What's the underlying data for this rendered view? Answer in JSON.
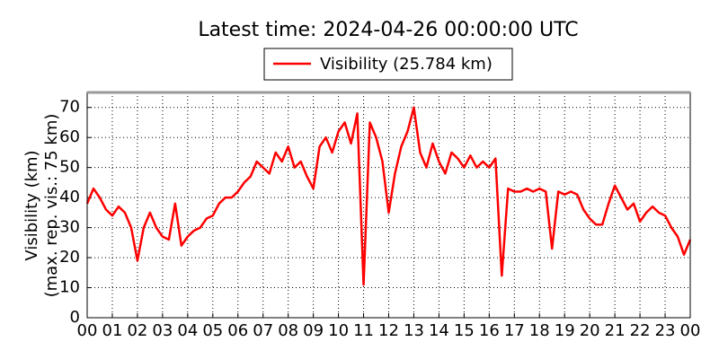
{
  "chart_data": {
    "type": "line",
    "title": "Latest time: 2024-04-26 00:00:00 UTC",
    "ylabel": [
      "Visibility (km)",
      "(max. rep. vis.: 75 km)"
    ],
    "x": [
      0,
      0.25,
      0.5,
      0.75,
      1,
      1.25,
      1.5,
      1.75,
      2,
      2.25,
      2.5,
      2.75,
      3,
      3.25,
      3.5,
      3.75,
      4,
      4.25,
      4.5,
      4.75,
      5,
      5.25,
      5.5,
      5.75,
      6,
      6.25,
      6.5,
      6.75,
      7,
      7.25,
      7.5,
      7.75,
      8,
      8.25,
      8.5,
      8.75,
      9,
      9.25,
      9.5,
      9.75,
      10,
      10.25,
      10.5,
      10.75,
      11,
      11.25,
      11.5,
      11.75,
      12,
      12.25,
      12.5,
      12.75,
      13,
      13.25,
      13.5,
      13.75,
      14,
      14.25,
      14.5,
      14.75,
      15,
      15.25,
      15.5,
      15.75,
      16,
      16.25,
      16.5,
      16.75,
      17,
      17.25,
      17.5,
      17.75,
      18,
      18.25,
      18.5,
      18.75,
      19,
      19.25,
      19.5,
      19.75,
      20,
      20.25,
      20.5,
      20.75,
      21,
      21.25,
      21.5,
      21.75,
      22,
      22.25,
      22.5,
      22.75,
      23,
      23.25,
      23.5,
      23.75,
      24
    ],
    "series": [
      {
        "name": "Visibility (25.784 km)",
        "color": "#ff0000",
        "values": [
          38,
          43,
          40,
          36,
          34,
          37,
          35,
          30,
          19,
          30,
          35,
          30,
          27,
          26,
          38,
          24,
          27,
          29,
          30,
          33,
          34,
          38,
          40,
          40,
          42,
          45,
          47,
          52,
          50,
          48,
          55,
          52,
          57,
          50,
          52,
          47,
          43,
          57,
          60,
          55,
          62,
          65,
          58,
          68,
          11,
          65,
          60,
          52,
          35,
          48,
          57,
          62,
          70,
          55,
          50,
          58,
          52,
          48,
          55,
          53,
          50,
          54,
          50,
          52,
          50,
          53,
          14,
          43,
          42,
          42,
          43,
          42,
          43,
          42,
          23,
          42,
          41,
          42,
          41,
          36,
          33,
          31,
          31,
          38,
          44,
          40,
          36,
          38,
          32,
          35,
          37,
          35,
          34,
          30,
          27,
          21,
          26
        ]
      }
    ],
    "xlim": [
      0,
      24
    ],
    "xticks": [
      {
        "value": 0,
        "label": "00"
      },
      {
        "value": 1,
        "label": "01"
      },
      {
        "value": 2,
        "label": "02"
      },
      {
        "value": 3,
        "label": "03"
      },
      {
        "value": 4,
        "label": "04"
      },
      {
        "value": 5,
        "label": "05"
      },
      {
        "value": 6,
        "label": "06"
      },
      {
        "value": 7,
        "label": "07"
      },
      {
        "value": 8,
        "label": "08"
      },
      {
        "value": 9,
        "label": "09"
      },
      {
        "value": 10,
        "label": "10"
      },
      {
        "value": 11,
        "label": "11"
      },
      {
        "value": 12,
        "label": "12"
      },
      {
        "value": 13,
        "label": "13"
      },
      {
        "value": 14,
        "label": "14"
      },
      {
        "value": 15,
        "label": "15"
      },
      {
        "value": 16,
        "label": "16"
      },
      {
        "value": 17,
        "label": "17"
      },
      {
        "value": 18,
        "label": "18"
      },
      {
        "value": 19,
        "label": "19"
      },
      {
        "value": 20,
        "label": "20"
      },
      {
        "value": 21,
        "label": "21"
      },
      {
        "value": 22,
        "label": "22"
      },
      {
        "value": 23,
        "label": "23"
      },
      {
        "value": 24,
        "label": "00"
      }
    ],
    "ylim": [
      0,
      75
    ],
    "yticks": [
      0,
      10,
      20,
      30,
      40,
      50,
      60,
      70
    ],
    "grid": true
  }
}
